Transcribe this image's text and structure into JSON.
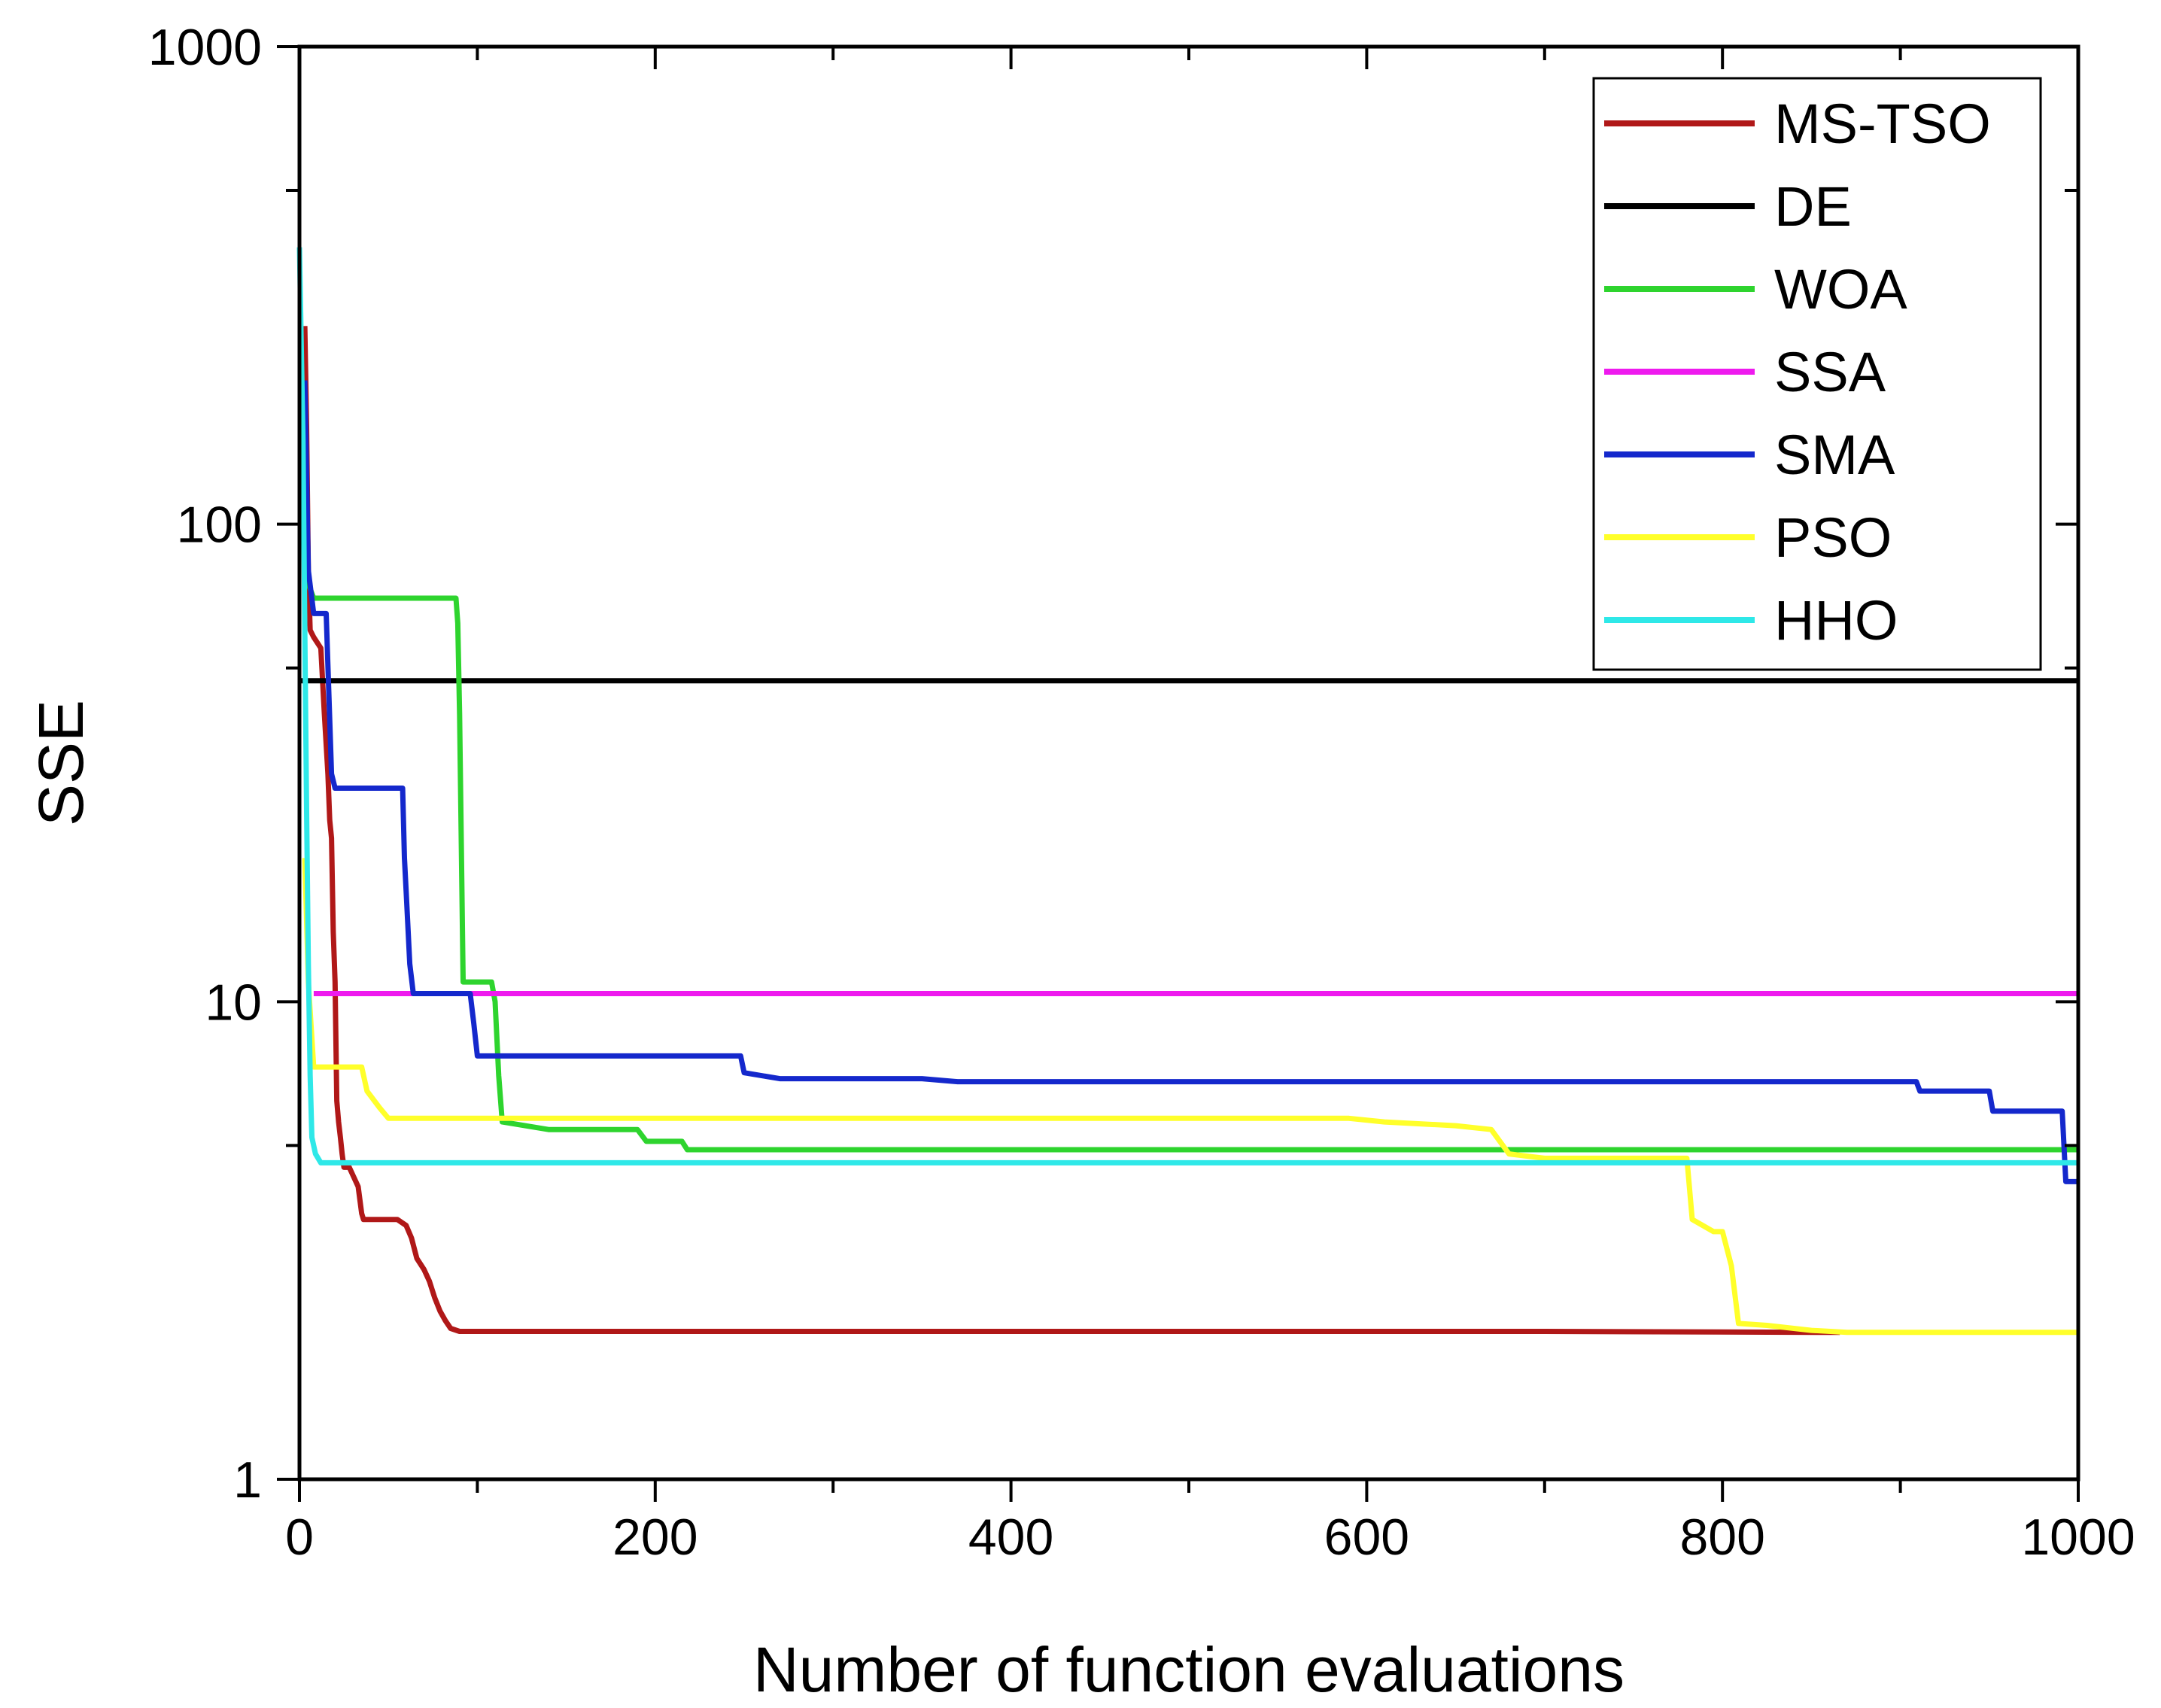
{
  "chart_data": {
    "type": "line",
    "title": "",
    "xlabel": "Number of function evaluations",
    "ylabel": "SSE",
    "xlim": [
      0,
      1000
    ],
    "ylim": [
      1,
      1000
    ],
    "yscale": "log",
    "xticks": [
      0,
      200,
      400,
      600,
      800,
      1000
    ],
    "xtick_labels": [
      "0",
      "200",
      "400",
      "600",
      "800",
      "1000"
    ],
    "yticks": [
      1,
      10,
      100,
      1000
    ],
    "ytick_labels": [
      "1",
      "10",
      "100",
      "1000"
    ],
    "legend_position": "top-right",
    "series": [
      {
        "name": "MS-TSO",
        "color": "#b01818",
        "x": [
          3,
          4,
          5,
          6,
          8,
          12,
          14,
          16,
          17,
          18,
          19,
          20,
          21,
          22,
          23,
          24,
          25,
          27,
          28,
          33,
          35,
          36,
          55,
          60,
          63,
          66,
          70,
          73,
          76,
          79,
          82,
          85,
          90,
          100,
          110,
          300,
          500,
          700,
          866
        ],
        "y": [
          260,
          160,
          80,
          60,
          58,
          55,
          40,
          30,
          24,
          22,
          14,
          11,
          6.2,
          5.6,
          5.2,
          4.8,
          4.5,
          4.5,
          4.5,
          4.1,
          3.6,
          3.5,
          3.5,
          3.4,
          3.2,
          2.9,
          2.75,
          2.6,
          2.4,
          2.25,
          2.15,
          2.07,
          2.04,
          2.04,
          2.04,
          2.04,
          2.04,
          2.04,
          2.03
        ]
      },
      {
        "name": "DE",
        "color": "#000000",
        "x": [
          0,
          1000
        ],
        "y": [
          47,
          47
        ]
      },
      {
        "name": "WOA",
        "color": "#2ed42e",
        "x": [
          3,
          5,
          8,
          88,
          89,
          90,
          92,
          108,
          110,
          112,
          114,
          140,
          190,
          195,
          215,
          218,
          300,
          500,
          700,
          1000
        ],
        "y": [
          120,
          75,
          70,
          70,
          62,
          40,
          11,
          11,
          10,
          7,
          5.6,
          5.4,
          5.4,
          5.1,
          5.1,
          4.9,
          4.9,
          4.9,
          4.9,
          4.9
        ]
      },
      {
        "name": "SSA",
        "color": "#ee1aee",
        "x": [
          8,
          1000
        ],
        "y": [
          10.4,
          10.4
        ]
      },
      {
        "name": "SMA",
        "color": "#1428cc",
        "x": [
          3,
          5,
          8,
          15,
          18,
          20,
          58,
          59,
          60,
          62,
          64,
          96,
          98,
          100,
          248,
          250,
          270,
          300,
          350,
          370,
          909,
          911,
          950,
          952,
          991,
          993,
          1000
        ],
        "y": [
          200,
          80,
          65,
          65,
          30,
          28,
          28,
          20,
          17,
          12,
          10.4,
          10.4,
          9,
          7.7,
          7.7,
          7.1,
          6.9,
          6.9,
          6.9,
          6.8,
          6.8,
          6.5,
          6.5,
          5.9,
          5.9,
          4.2,
          4.2
        ]
      },
      {
        "name": "PSO",
        "color": "#ffff2a",
        "x": [
          3,
          5,
          8,
          12,
          35,
          38,
          45,
          50,
          300,
          550,
          590,
          610,
          650,
          670,
          680,
          700,
          780,
          783,
          795,
          800,
          805,
          809,
          825,
          850,
          870,
          1000
        ],
        "y": [
          20,
          11,
          7.3,
          7.3,
          7.3,
          6.5,
          6.0,
          5.7,
          5.7,
          5.7,
          5.7,
          5.6,
          5.5,
          5.4,
          4.8,
          4.7,
          4.7,
          3.5,
          3.3,
          3.3,
          2.8,
          2.12,
          2.1,
          2.05,
          2.03,
          2.03
        ]
      },
      {
        "name": "HHO",
        "color": "#2ee8e8",
        "x": [
          0,
          2,
          3,
          4,
          5,
          6,
          7,
          9,
          12,
          20,
          300,
          600,
          1000
        ],
        "y": [
          380,
          150,
          60,
          25,
          12,
          7,
          5.2,
          4.8,
          4.6,
          4.6,
          4.6,
          4.6,
          4.6
        ]
      }
    ]
  }
}
